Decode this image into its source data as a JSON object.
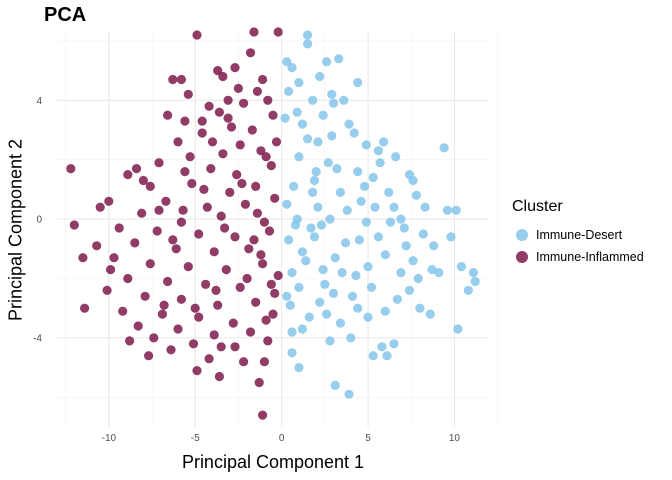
{
  "chart_data": {
    "type": "scatter",
    "title": "PCA",
    "xlabel": "Principal Component 1",
    "ylabel": "Principal Component 2",
    "xlim": [
      -13,
      12
    ],
    "ylim": [
      -7,
      6.3
    ],
    "x_ticks": [
      -10,
      -5,
      0,
      5,
      10
    ],
    "y_ticks": [
      -4,
      0,
      4
    ],
    "grid": true,
    "legend": {
      "title": "Cluster",
      "placement": "right"
    },
    "series": [
      {
        "name": "Immune-Desert",
        "color": "#85C4EA",
        "points": [
          [
            1.5,
            6.2
          ],
          [
            1.5,
            5.9
          ],
          [
            2.6,
            5.3
          ],
          [
            3.3,
            5.4
          ],
          [
            0.3,
            5.3
          ],
          [
            0.6,
            5.1
          ],
          [
            1.0,
            4.6
          ],
          [
            2.2,
            4.8
          ],
          [
            4.4,
            4.6
          ],
          [
            0.4,
            4.3
          ],
          [
            1.8,
            4.0
          ],
          [
            2.9,
            4.2
          ],
          [
            3.6,
            4.0
          ],
          [
            0.2,
            3.4
          ],
          [
            1.2,
            3.2
          ],
          [
            2.4,
            3.5
          ],
          [
            3.9,
            3.2
          ],
          [
            2.1,
            2.6
          ],
          [
            4.9,
            2.5
          ],
          [
            5.6,
            2.3
          ],
          [
            6.6,
            2.1
          ],
          [
            9.4,
            2.4
          ],
          [
            1.0,
            2.1
          ],
          [
            3.2,
            1.7
          ],
          [
            4.4,
            1.6
          ],
          [
            5.3,
            1.4
          ],
          [
            7.4,
            1.5
          ],
          [
            0.7,
            1.1
          ],
          [
            1.9,
            1.3
          ],
          [
            3.4,
            0.9
          ],
          [
            6.2,
            0.9
          ],
          [
            7.6,
            1.3
          ],
          [
            7.8,
            0.8
          ],
          [
            0.3,
            0.5
          ],
          [
            2.1,
            0.4
          ],
          [
            4.6,
            0.6
          ],
          [
            6.5,
            0.4
          ],
          [
            9.6,
            0.3
          ],
          [
            10.1,
            0.3
          ],
          [
            0.8,
            -0.2
          ],
          [
            2.8,
            0.0
          ],
          [
            4.9,
            -0.1
          ],
          [
            7.1,
            -0.3
          ],
          [
            8.2,
            -0.5
          ],
          [
            0.4,
            -0.7
          ],
          [
            1.9,
            -0.6
          ],
          [
            3.7,
            -0.8
          ],
          [
            5.6,
            -0.6
          ],
          [
            9.8,
            -0.6
          ],
          [
            8.8,
            -0.9
          ],
          [
            1.2,
            -1.1
          ],
          [
            3.1,
            -1.3
          ],
          [
            6.0,
            -1.2
          ],
          [
            7.6,
            -1.4
          ],
          [
            0.6,
            -1.8
          ],
          [
            2.4,
            -1.7
          ],
          [
            4.3,
            -1.9
          ],
          [
            6.9,
            -1.8
          ],
          [
            8.7,
            -1.7
          ],
          [
            9.1,
            -1.8
          ],
          [
            10.4,
            -1.6
          ],
          [
            11.1,
            -1.8
          ],
          [
            1.0,
            -2.3
          ],
          [
            3.0,
            -2.5
          ],
          [
            5.2,
            -2.3
          ],
          [
            7.4,
            -2.4
          ],
          [
            11.2,
            -2.1
          ],
          [
            10.8,
            -2.4
          ],
          [
            0.3,
            -2.6
          ],
          [
            2.2,
            -2.8
          ],
          [
            4.4,
            -3.0
          ],
          [
            6.7,
            -2.7
          ],
          [
            8.0,
            -3.0
          ],
          [
            1.6,
            -3.3
          ],
          [
            3.4,
            -3.5
          ],
          [
            5.0,
            -3.3
          ],
          [
            8.6,
            -3.2
          ],
          [
            10.2,
            -3.7
          ],
          [
            0.6,
            -3.8
          ],
          [
            1.2,
            -3.7
          ],
          [
            2.8,
            -4.1
          ],
          [
            4.0,
            -4.0
          ],
          [
            5.8,
            -4.3
          ],
          [
            6.5,
            -4.2
          ],
          [
            0.6,
            -4.5
          ],
          [
            5.3,
            -4.6
          ],
          [
            6.1,
            -4.6
          ],
          [
            1.0,
            -5.0
          ],
          [
            3.1,
            -5.6
          ],
          [
            3.9,
            -5.9
          ],
          [
            1.8,
            0.9
          ],
          [
            2.7,
            1.9
          ],
          [
            0.9,
            3.6
          ],
          [
            4.2,
            2.9
          ],
          [
            5.0,
            -1.6
          ],
          [
            2.3,
            -0.2
          ],
          [
            3.8,
            0.3
          ],
          [
            6.3,
            -0.1
          ],
          [
            5.7,
            1.9
          ],
          [
            1.4,
            -1.4
          ],
          [
            2.9,
            2.8
          ],
          [
            4.1,
            -2.6
          ],
          [
            6.9,
            0.0
          ],
          [
            0.9,
            0.0
          ],
          [
            3.5,
            -1.8
          ],
          [
            5.4,
            0.4
          ],
          [
            2.0,
            1.6
          ],
          [
            7.2,
            -0.9
          ],
          [
            1.5,
            2.7
          ],
          [
            4.8,
            1.1
          ],
          [
            0.5,
            -2.9
          ],
          [
            2.6,
            -3.2
          ],
          [
            6.0,
            -3.1
          ],
          [
            3.0,
            3.9
          ],
          [
            5.9,
            2.6
          ],
          [
            7.9,
            -2.0
          ],
          [
            1.7,
            -0.3
          ],
          [
            4.5,
            -0.7
          ],
          [
            8.3,
            0.4
          ],
          [
            2.5,
            -2.2
          ]
        ]
      },
      {
        "name": "Immune-Inflammed",
        "color": "#7D1A4B",
        "points": [
          [
            -0.2,
            6.3
          ],
          [
            -1.6,
            6.3
          ],
          [
            -4.9,
            6.2
          ],
          [
            -1.8,
            5.6
          ],
          [
            -2.7,
            5.1
          ],
          [
            -3.7,
            5.0
          ],
          [
            -6.3,
            4.7
          ],
          [
            -5.8,
            4.7
          ],
          [
            -3.4,
            4.8
          ],
          [
            -1.1,
            4.7
          ],
          [
            -5.4,
            4.2
          ],
          [
            -3.1,
            4.0
          ],
          [
            -1.4,
            4.3
          ],
          [
            -0.8,
            4.0
          ],
          [
            -4.2,
            3.8
          ],
          [
            -2.2,
            3.9
          ],
          [
            -6.6,
            3.5
          ],
          [
            -5.6,
            3.3
          ],
          [
            -3.6,
            3.6
          ],
          [
            -0.5,
            3.5
          ],
          [
            -2.9,
            3.1
          ],
          [
            -1.7,
            3.0
          ],
          [
            -4.6,
            2.9
          ],
          [
            -6.0,
            2.6
          ],
          [
            -2.4,
            2.5
          ],
          [
            -0.3,
            2.6
          ],
          [
            -3.4,
            2.2
          ],
          [
            -5.3,
            2.1
          ],
          [
            -1.2,
            2.3
          ],
          [
            -7.1,
            1.9
          ],
          [
            -8.9,
            1.5
          ],
          [
            -8.4,
            1.7
          ],
          [
            -4.1,
            1.7
          ],
          [
            -2.6,
            1.5
          ],
          [
            -0.6,
            1.8
          ],
          [
            -12.2,
            1.7
          ],
          [
            -10.0,
            0.6
          ],
          [
            -10.5,
            0.4
          ],
          [
            -7.6,
            1.1
          ],
          [
            -5.2,
            1.2
          ],
          [
            -3.0,
            0.9
          ],
          [
            -1.5,
            1.1
          ],
          [
            -6.7,
            0.6
          ],
          [
            -4.3,
            0.4
          ],
          [
            -2.1,
            0.5
          ],
          [
            -0.4,
            0.7
          ],
          [
            -8.1,
            0.2
          ],
          [
            -5.8,
            -0.1
          ],
          [
            -3.5,
            0.1
          ],
          [
            -1.0,
            -0.1
          ],
          [
            -12.0,
            -0.2
          ],
          [
            -9.4,
            -0.3
          ],
          [
            -7.2,
            -0.4
          ],
          [
            -4.8,
            -0.5
          ],
          [
            -2.7,
            -0.6
          ],
          [
            -0.7,
            -0.4
          ],
          [
            -10.7,
            -0.9
          ],
          [
            -8.5,
            -0.8
          ],
          [
            -6.1,
            -1.0
          ],
          [
            -3.9,
            -1.1
          ],
          [
            -1.9,
            -1.0
          ],
          [
            -11.5,
            -1.3
          ],
          [
            -9.7,
            -1.3
          ],
          [
            -7.6,
            -1.5
          ],
          [
            -5.4,
            -1.6
          ],
          [
            -3.2,
            -1.7
          ],
          [
            -1.1,
            -1.5
          ],
          [
            -0.2,
            -1.9
          ],
          [
            -8.9,
            -2.0
          ],
          [
            -6.6,
            -2.1
          ],
          [
            -4.4,
            -2.2
          ],
          [
            -2.4,
            -2.3
          ],
          [
            -10.1,
            -2.4
          ],
          [
            -7.9,
            -2.6
          ],
          [
            -5.8,
            -2.7
          ],
          [
            -3.7,
            -2.9
          ],
          [
            -1.5,
            -2.8
          ],
          [
            -0.4,
            -2.5
          ],
          [
            -11.4,
            -3.0
          ],
          [
            -9.2,
            -3.1
          ],
          [
            -6.9,
            -3.2
          ],
          [
            -4.8,
            -3.3
          ],
          [
            -2.8,
            -3.5
          ],
          [
            -0.9,
            -3.4
          ],
          [
            -8.3,
            -3.6
          ],
          [
            -6.0,
            -3.7
          ],
          [
            -3.9,
            -3.9
          ],
          [
            -1.8,
            -3.8
          ],
          [
            -7.4,
            -4.0
          ],
          [
            -5.1,
            -4.2
          ],
          [
            -2.7,
            -4.3
          ],
          [
            -0.8,
            -4.1
          ],
          [
            -8.8,
            -4.1
          ],
          [
            -6.4,
            -4.4
          ],
          [
            -4.2,
            -4.7
          ],
          [
            -2.2,
            -4.8
          ],
          [
            -3.5,
            -4.3
          ],
          [
            -7.7,
            -4.6
          ],
          [
            -1.0,
            -4.8
          ],
          [
            -3.6,
            -5.3
          ],
          [
            -1.3,
            -5.5
          ],
          [
            -4.9,
            -5.1
          ],
          [
            -1.1,
            -6.6
          ],
          [
            -0.5,
            -3.2
          ],
          [
            -5.6,
            1.6
          ],
          [
            -2.0,
            -2.0
          ],
          [
            -4.0,
            2.6
          ],
          [
            -6.3,
            -0.7
          ],
          [
            -3.1,
            3.4
          ],
          [
            -1.6,
            -0.7
          ],
          [
            -7.1,
            0.3
          ],
          [
            -2.3,
            1.2
          ],
          [
            -5.0,
            -3.0
          ],
          [
            -0.9,
            2.1
          ],
          [
            -9.9,
            -1.7
          ],
          [
            -3.3,
            -0.3
          ],
          [
            -4.6,
            3.3
          ],
          [
            -1.4,
            0.2
          ],
          [
            -6.8,
            -2.9
          ],
          [
            -2.5,
            4.4
          ],
          [
            -8.0,
            1.3
          ],
          [
            -0.6,
            -2.2
          ],
          [
            -5.7,
            0.3
          ],
          [
            -3.8,
            -2.4
          ],
          [
            -1.2,
            -1.2
          ],
          [
            -4.5,
            1.0
          ]
        ]
      }
    ]
  }
}
